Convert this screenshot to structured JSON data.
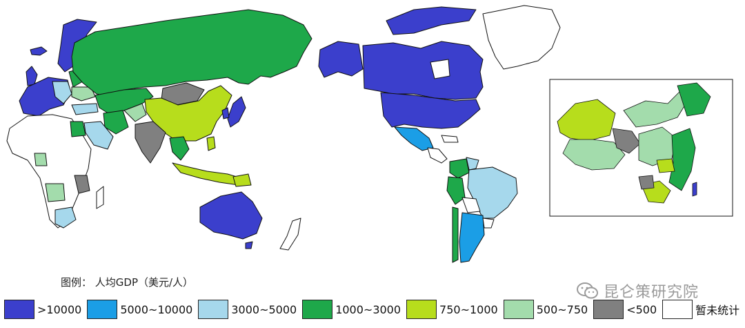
{
  "legend": {
    "title": "图例：  人均GDP（美元/人）",
    "items": [
      {
        "label": ">10000",
        "color": "#3b3fcc"
      },
      {
        "label": "5000~10000",
        "color": "#1b9ee6"
      },
      {
        "label": "3000~5000",
        "color": "#a6d8ec"
      },
      {
        "label": "1000~3000",
        "color": "#1ea84a"
      },
      {
        "label": "750~1000",
        "color": "#b7dd1c"
      },
      {
        "label": "500~750",
        "color": "#a3dcac"
      },
      {
        "label": "<500",
        "color": "#808080"
      },
      {
        "label": "暂未统计",
        "color": "#ffffff"
      }
    ]
  },
  "watermark": {
    "text": "昆仑策研究院",
    "icon": "wechat-icon"
  }
}
